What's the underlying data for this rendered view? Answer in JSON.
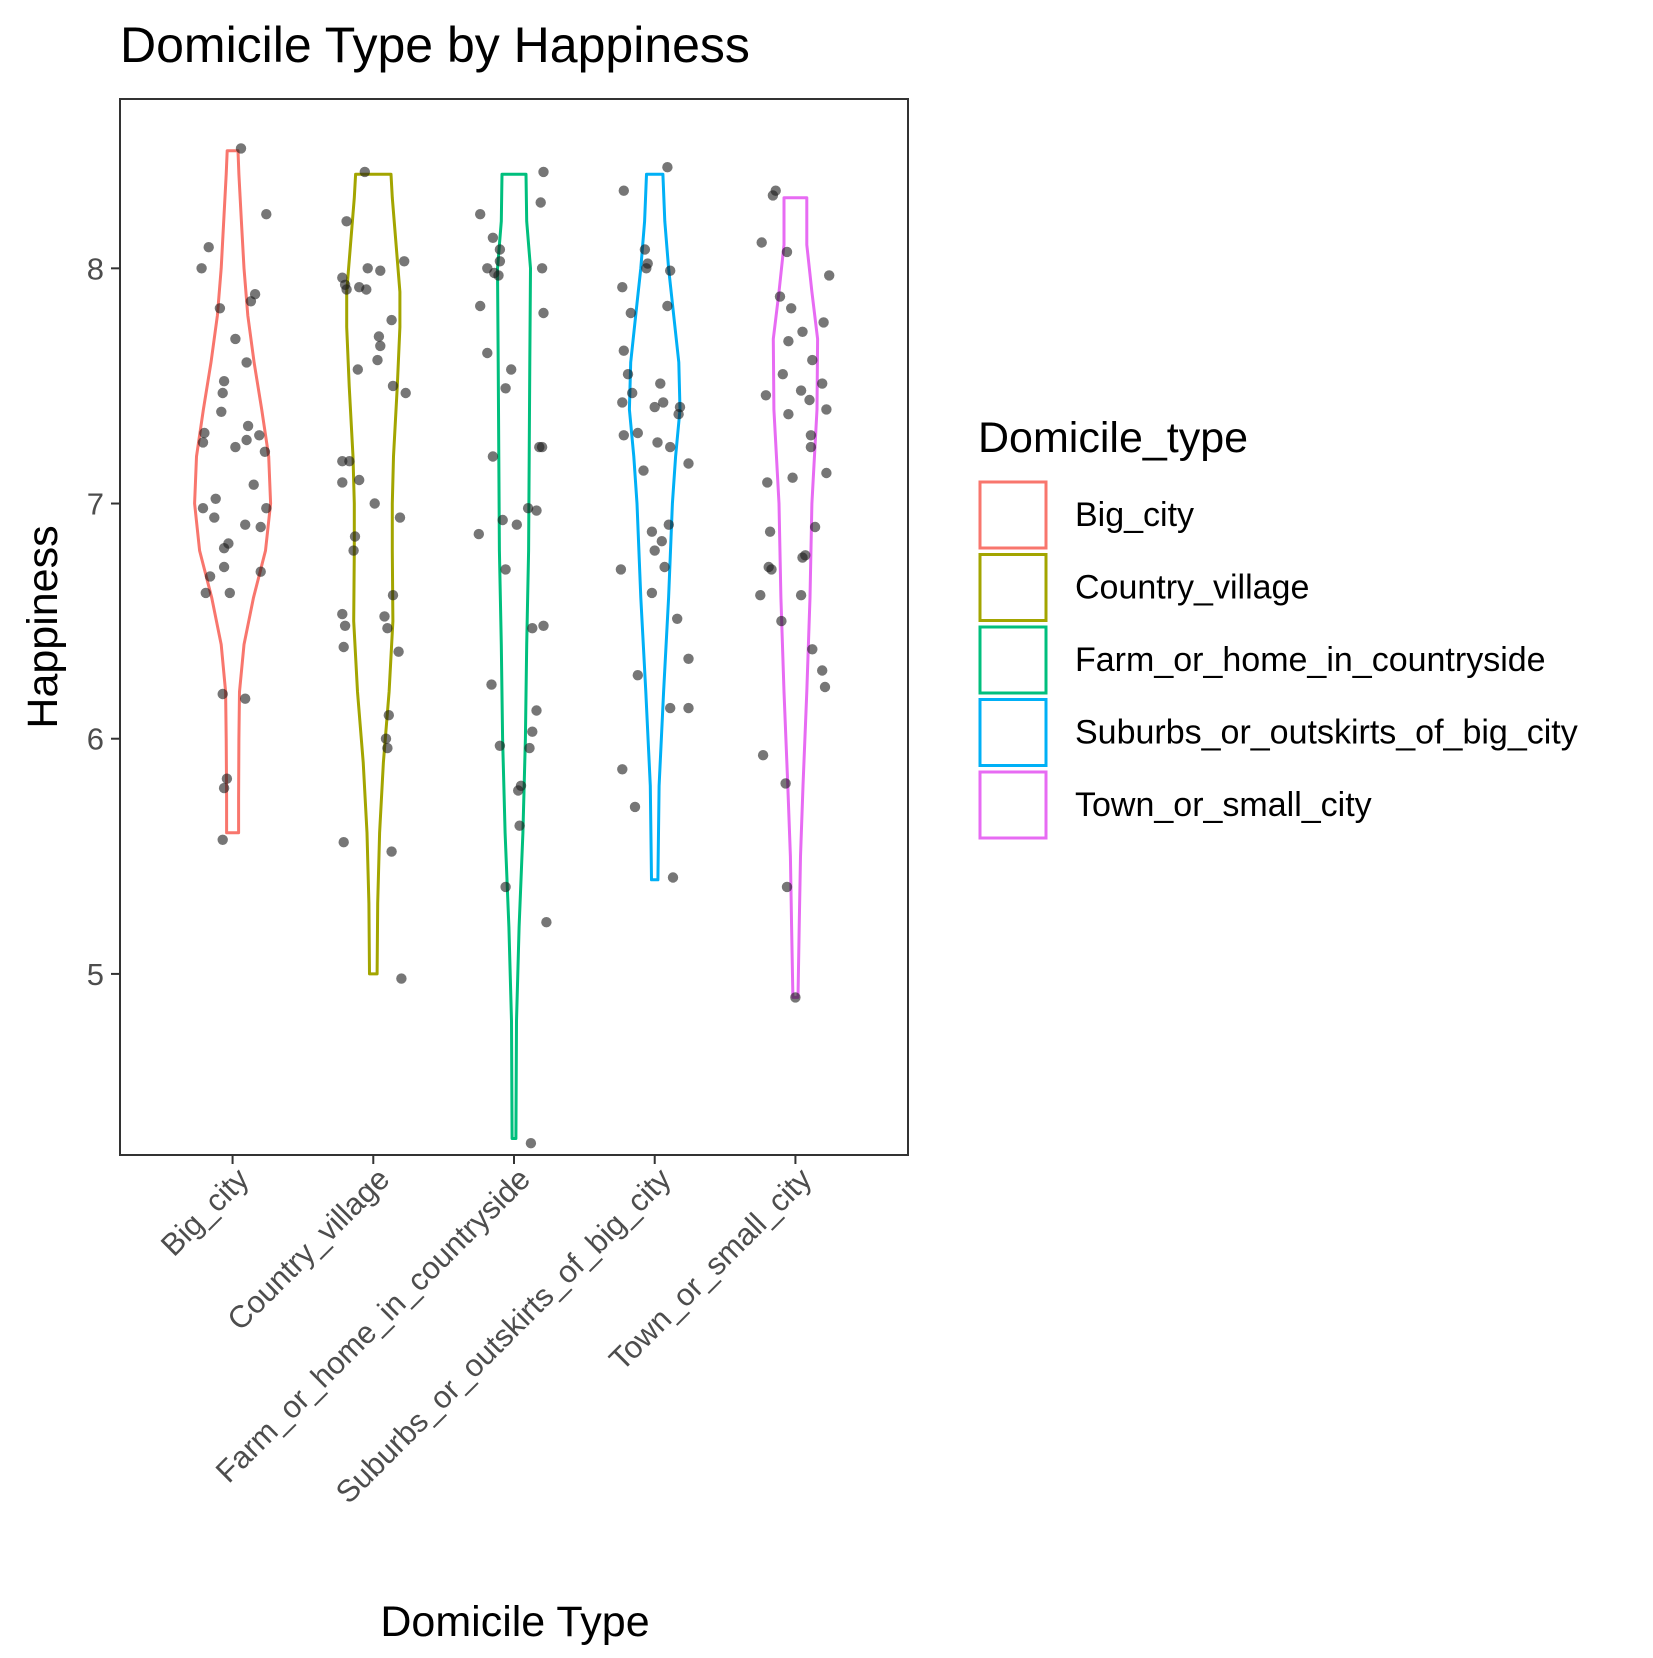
{
  "chart_data": {
    "type": "violin",
    "title": "Domicile Type by Happiness",
    "xlabel": "Domicile Type",
    "ylabel": "Happiness",
    "ylim": [
      4.23,
      8.72
    ],
    "yticks": [
      5,
      6,
      7,
      8
    ],
    "categories": [
      "Big_city",
      "Country_village",
      "Farm_or_home_in_countryside",
      "Suburbs_or_outskirts_of_big_city",
      "Town_or_small_city"
    ],
    "legend": {
      "title": "Domicile_type",
      "position": "right",
      "items": [
        "Big_city",
        "Country_village",
        "Farm_or_home_in_countryside",
        "Suburbs_or_outskirts_of_big_city",
        "Town_or_small_city"
      ]
    },
    "colors": {
      "Big_city": "#F8766D",
      "Country_village": "#A3A500",
      "Farm_or_home_in_countryside": "#00BF7D",
      "Suburbs_or_outskirts_of_big_city": "#00B0F6",
      "Town_or_small_city": "#E76BF3"
    },
    "point_color": "#1a1a1a",
    "grid": false,
    "series": [
      {
        "name": "Big_city",
        "violin": [
          [
            5.6,
            0.095
          ],
          [
            5.75,
            0.095
          ],
          [
            6.0,
            0.1
          ],
          [
            6.2,
            0.11
          ],
          [
            6.4,
            0.18
          ],
          [
            6.6,
            0.33
          ],
          [
            6.8,
            0.52
          ],
          [
            7.0,
            0.6
          ],
          [
            7.2,
            0.57
          ],
          [
            7.4,
            0.46
          ],
          [
            7.6,
            0.34
          ],
          [
            7.8,
            0.24
          ],
          [
            8.0,
            0.18
          ],
          [
            8.2,
            0.14
          ],
          [
            8.4,
            0.1
          ],
          [
            8.5,
            0.085
          ]
        ],
        "points": [
          [
            -0.22,
            8.0
          ],
          [
            -0.17,
            8.09
          ],
          [
            0.06,
            8.51
          ],
          [
            0.24,
            8.23
          ],
          [
            -0.09,
            7.83
          ],
          [
            0.16,
            7.89
          ],
          [
            0.13,
            7.86
          ],
          [
            0.02,
            7.7
          ],
          [
            0.1,
            7.6
          ],
          [
            -0.06,
            7.52
          ],
          [
            -0.07,
            7.47
          ],
          [
            -0.08,
            7.39
          ],
          [
            -0.2,
            7.3
          ],
          [
            -0.21,
            7.26
          ],
          [
            0.11,
            7.33
          ],
          [
            0.02,
            7.24
          ],
          [
            0.1,
            7.27
          ],
          [
            0.19,
            7.29
          ],
          [
            0.23,
            7.22
          ],
          [
            0.15,
            7.08
          ],
          [
            -0.21,
            6.98
          ],
          [
            -0.12,
            7.02
          ],
          [
            -0.13,
            6.94
          ],
          [
            0.24,
            6.98
          ],
          [
            0.09,
            6.91
          ],
          [
            0.2,
            6.9
          ],
          [
            -0.03,
            6.83
          ],
          [
            -0.06,
            6.81
          ],
          [
            -0.06,
            6.73
          ],
          [
            -0.16,
            6.69
          ],
          [
            0.2,
            6.71
          ],
          [
            -0.19,
            6.62
          ],
          [
            -0.02,
            6.62
          ],
          [
            -0.07,
            6.19
          ],
          [
            0.09,
            6.17
          ],
          [
            -0.04,
            5.83
          ],
          [
            -0.06,
            5.79
          ],
          [
            -0.07,
            5.57
          ]
        ]
      },
      {
        "name": "Country_village",
        "violin": [
          [
            5.0,
            0.06
          ],
          [
            5.3,
            0.07
          ],
          [
            5.6,
            0.1
          ],
          [
            5.9,
            0.16
          ],
          [
            6.2,
            0.25
          ],
          [
            6.5,
            0.31
          ],
          [
            6.8,
            0.3
          ],
          [
            7.0,
            0.3
          ],
          [
            7.2,
            0.32
          ],
          [
            7.5,
            0.38
          ],
          [
            7.75,
            0.42
          ],
          [
            7.9,
            0.42
          ],
          [
            8.1,
            0.36
          ],
          [
            8.3,
            0.3
          ],
          [
            8.4,
            0.28
          ]
        ],
        "points": [
          [
            -0.06,
            8.41
          ],
          [
            -0.19,
            8.2
          ],
          [
            -0.22,
            7.96
          ],
          [
            -0.2,
            7.93
          ],
          [
            -0.19,
            7.91
          ],
          [
            0.22,
            8.03
          ],
          [
            -0.04,
            8.0
          ],
          [
            0.05,
            7.99
          ],
          [
            -0.1,
            7.92
          ],
          [
            -0.05,
            7.91
          ],
          [
            0.13,
            7.78
          ],
          [
            0.04,
            7.71
          ],
          [
            0.05,
            7.67
          ],
          [
            0.03,
            7.61
          ],
          [
            -0.11,
            7.57
          ],
          [
            0.14,
            7.5
          ],
          [
            0.23,
            7.47
          ],
          [
            -0.17,
            7.18
          ],
          [
            -0.22,
            7.18
          ],
          [
            -0.22,
            7.09
          ],
          [
            -0.1,
            7.1
          ],
          [
            0.01,
            7.0
          ],
          [
            0.19,
            6.94
          ],
          [
            -0.13,
            6.86
          ],
          [
            -0.14,
            6.8
          ],
          [
            0.14,
            6.61
          ],
          [
            -0.22,
            6.53
          ],
          [
            0.08,
            6.52
          ],
          [
            -0.2,
            6.48
          ],
          [
            0.1,
            6.47
          ],
          [
            -0.21,
            6.39
          ],
          [
            0.18,
            6.37
          ],
          [
            0.11,
            6.1
          ],
          [
            0.09,
            6.0
          ],
          [
            0.1,
            5.96
          ],
          [
            -0.21,
            5.56
          ],
          [
            0.13,
            5.52
          ],
          [
            0.2,
            4.98
          ]
        ]
      },
      {
        "name": "Farm_or_home_in_countryside",
        "violin": [
          [
            4.3,
            0.03
          ],
          [
            4.8,
            0.04
          ],
          [
            5.2,
            0.08
          ],
          [
            5.6,
            0.14
          ],
          [
            6.0,
            0.18
          ],
          [
            6.4,
            0.2
          ],
          [
            6.8,
            0.23
          ],
          [
            7.2,
            0.24
          ],
          [
            7.6,
            0.25
          ],
          [
            8.0,
            0.26
          ],
          [
            8.2,
            0.2
          ],
          [
            8.4,
            0.19
          ]
        ],
        "points": [
          [
            0.21,
            8.41
          ],
          [
            0.19,
            8.28
          ],
          [
            -0.24,
            8.23
          ],
          [
            -0.15,
            8.13
          ],
          [
            -0.1,
            8.08
          ],
          [
            -0.1,
            8.03
          ],
          [
            -0.19,
            8.0
          ],
          [
            -0.14,
            7.98
          ],
          [
            0.2,
            8.0
          ],
          [
            -0.11,
            7.97
          ],
          [
            -0.24,
            7.84
          ],
          [
            0.21,
            7.81
          ],
          [
            -0.19,
            7.64
          ],
          [
            -0.02,
            7.57
          ],
          [
            -0.06,
            7.49
          ],
          [
            0.18,
            7.24
          ],
          [
            0.2,
            7.24
          ],
          [
            -0.15,
            7.2
          ],
          [
            0.1,
            6.98
          ],
          [
            0.16,
            6.97
          ],
          [
            -0.08,
            6.93
          ],
          [
            0.02,
            6.91
          ],
          [
            -0.25,
            6.87
          ],
          [
            -0.06,
            6.72
          ],
          [
            0.13,
            6.47
          ],
          [
            0.21,
            6.48
          ],
          [
            0.16,
            6.12
          ],
          [
            -0.16,
            6.23
          ],
          [
            0.13,
            6.03
          ],
          [
            0.11,
            5.96
          ],
          [
            -0.1,
            5.97
          ],
          [
            0.05,
            5.8
          ],
          [
            0.03,
            5.78
          ],
          [
            0.04,
            5.63
          ],
          [
            -0.06,
            5.37
          ],
          [
            0.23,
            5.22
          ],
          [
            0.12,
            4.28
          ]
        ]
      },
      {
        "name": "Suburbs_or_outskirts_of_big_city",
        "violin": [
          [
            5.4,
            0.05
          ],
          [
            5.8,
            0.07
          ],
          [
            6.2,
            0.14
          ],
          [
            6.6,
            0.22
          ],
          [
            7.0,
            0.28
          ],
          [
            7.2,
            0.33
          ],
          [
            7.4,
            0.4
          ],
          [
            7.6,
            0.38
          ],
          [
            7.8,
            0.3
          ],
          [
            8.0,
            0.22
          ],
          [
            8.2,
            0.16
          ],
          [
            8.4,
            0.13
          ]
        ],
        "points": [
          [
            0.09,
            8.43
          ],
          [
            -0.22,
            8.33
          ],
          [
            -0.07,
            8.08
          ],
          [
            -0.05,
            8.02
          ],
          [
            -0.06,
            8.0
          ],
          [
            0.11,
            7.99
          ],
          [
            -0.23,
            7.92
          ],
          [
            -0.17,
            7.81
          ],
          [
            0.09,
            7.84
          ],
          [
            -0.22,
            7.65
          ],
          [
            -0.19,
            7.55
          ],
          [
            0.04,
            7.51
          ],
          [
            -0.16,
            7.47
          ],
          [
            -0.23,
            7.43
          ],
          [
            0.06,
            7.43
          ],
          [
            0.0,
            7.41
          ],
          [
            0.18,
            7.41
          ],
          [
            0.17,
            7.38
          ],
          [
            -0.22,
            7.29
          ],
          [
            0.02,
            7.26
          ],
          [
            0.11,
            7.24
          ],
          [
            -0.12,
            7.3
          ],
          [
            -0.08,
            7.14
          ],
          [
            0.24,
            7.17
          ],
          [
            0.1,
            6.91
          ],
          [
            -0.02,
            6.88
          ],
          [
            0.05,
            6.84
          ],
          [
            0.0,
            6.8
          ],
          [
            0.07,
            6.73
          ],
          [
            -0.24,
            6.72
          ],
          [
            -0.02,
            6.62
          ],
          [
            0.16,
            6.51
          ],
          [
            0.24,
            6.34
          ],
          [
            -0.12,
            6.27
          ],
          [
            0.11,
            6.13
          ],
          [
            0.24,
            6.13
          ],
          [
            -0.23,
            5.87
          ],
          [
            -0.14,
            5.71
          ],
          [
            0.13,
            5.41
          ]
        ]
      },
      {
        "name": "Town_or_small_city",
        "violin": [
          [
            4.9,
            0.04
          ],
          [
            5.2,
            0.06
          ],
          [
            5.5,
            0.08
          ],
          [
            5.8,
            0.12
          ],
          [
            6.2,
            0.18
          ],
          [
            6.6,
            0.23
          ],
          [
            7.0,
            0.26
          ],
          [
            7.4,
            0.34
          ],
          [
            7.7,
            0.35
          ],
          [
            7.9,
            0.26
          ],
          [
            8.1,
            0.18
          ],
          [
            8.3,
            0.18
          ]
        ],
        "points": [
          [
            -0.14,
            8.33
          ],
          [
            -0.16,
            8.31
          ],
          [
            -0.24,
            8.11
          ],
          [
            -0.06,
            8.07
          ],
          [
            0.24,
            7.97
          ],
          [
            -0.11,
            7.88
          ],
          [
            -0.03,
            7.83
          ],
          [
            0.2,
            7.77
          ],
          [
            0.05,
            7.73
          ],
          [
            -0.05,
            7.69
          ],
          [
            0.12,
            7.61
          ],
          [
            -0.09,
            7.55
          ],
          [
            0.19,
            7.51
          ],
          [
            0.04,
            7.48
          ],
          [
            -0.21,
            7.46
          ],
          [
            0.1,
            7.44
          ],
          [
            0.22,
            7.4
          ],
          [
            -0.05,
            7.38
          ],
          [
            0.11,
            7.29
          ],
          [
            0.11,
            7.24
          ],
          [
            -0.02,
            7.11
          ],
          [
            0.22,
            7.13
          ],
          [
            -0.2,
            7.09
          ],
          [
            0.14,
            6.9
          ],
          [
            -0.18,
            6.88
          ],
          [
            0.07,
            6.78
          ],
          [
            0.05,
            6.77
          ],
          [
            -0.19,
            6.73
          ],
          [
            -0.17,
            6.72
          ],
          [
            0.04,
            6.61
          ],
          [
            -0.25,
            6.61
          ],
          [
            -0.1,
            6.5
          ],
          [
            0.12,
            6.38
          ],
          [
            0.19,
            6.29
          ],
          [
            0.21,
            6.22
          ],
          [
            -0.23,
            5.93
          ],
          [
            -0.07,
            5.81
          ],
          [
            -0.06,
            5.37
          ],
          [
            0.0,
            4.9
          ]
        ]
      }
    ]
  }
}
